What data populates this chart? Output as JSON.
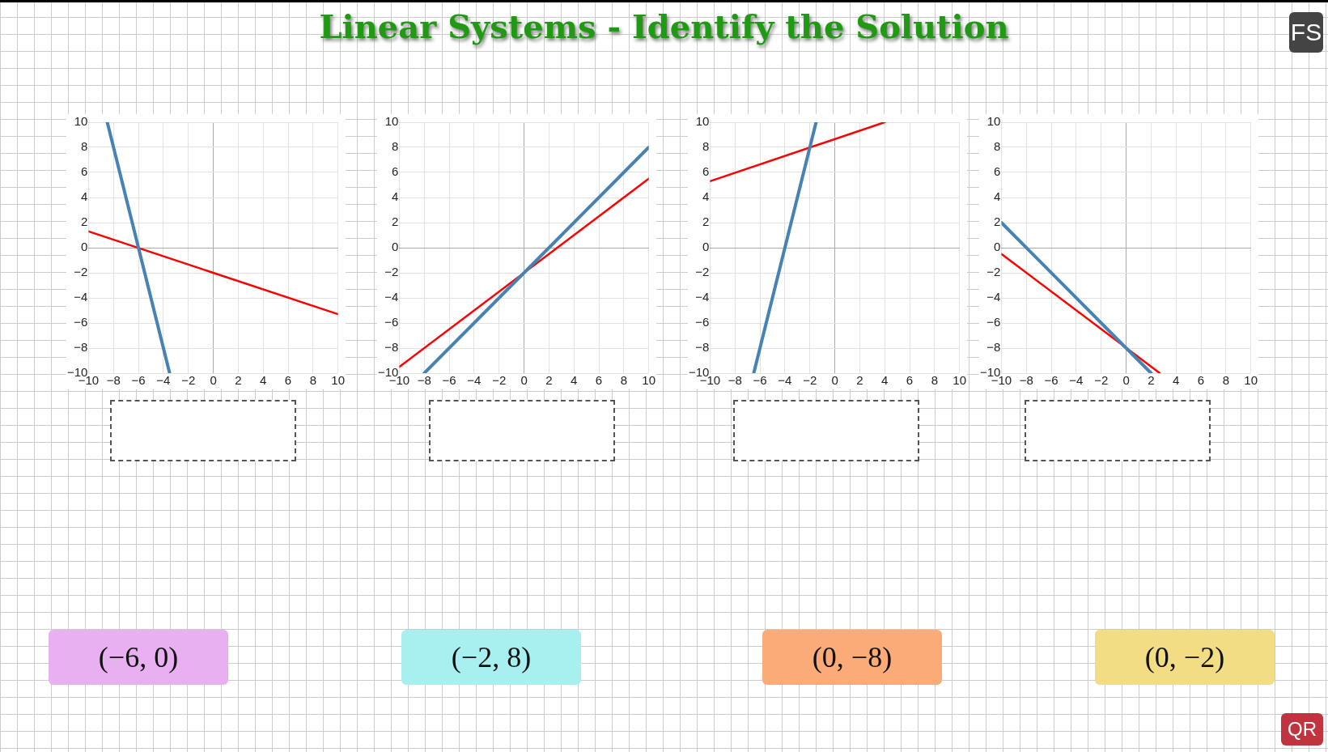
{
  "chart_data": [
    {
      "type": "line",
      "xlim": [
        -10,
        10
      ],
      "ylim": [
        -10,
        10
      ],
      "xticks": [
        {
          "value": -10,
          "label": "−10"
        },
        {
          "value": -8,
          "label": "−8"
        },
        {
          "value": -6,
          "label": "−6"
        },
        {
          "value": -4,
          "label": "−4"
        },
        {
          "value": -2,
          "label": "−2"
        },
        0,
        2,
        4,
        6,
        8,
        10
      ],
      "yticks": [
        {
          "value": -10,
          "label": "−10"
        },
        {
          "value": -8,
          "label": "−8"
        },
        {
          "value": -6,
          "label": "−6"
        },
        {
          "value": -4,
          "label": "−4"
        },
        {
          "value": -2,
          "label": "−2"
        },
        0,
        2,
        4,
        6,
        8,
        10
      ],
      "grid": true,
      "legend": false,
      "marker": "none",
      "series": [
        {
          "color": "#4682b4",
          "x": [
            -8.5,
            -3.5
          ],
          "values": [
            10,
            -10
          ]
        },
        {
          "color": "#ff0000",
          "x": [
            -10,
            10
          ],
          "values": [
            1.3,
            -5.3
          ]
        }
      ]
    },
    {
      "type": "line",
      "xlim": [
        -10,
        10
      ],
      "ylim": [
        -10,
        10
      ],
      "xticks": [
        {
          "value": -10,
          "label": "−10"
        },
        {
          "value": -8,
          "label": "−8"
        },
        {
          "value": -6,
          "label": "−6"
        },
        {
          "value": -4,
          "label": "−4"
        },
        {
          "value": -2,
          "label": "−2"
        },
        0,
        2,
        4,
        6,
        8,
        10
      ],
      "yticks": [
        {
          "value": -10,
          "label": "−10"
        },
        {
          "value": -8,
          "label": "−8"
        },
        {
          "value": -6,
          "label": "−6"
        },
        {
          "value": -4,
          "label": "−4"
        },
        {
          "value": -2,
          "label": "−2"
        },
        0,
        2,
        4,
        6,
        8,
        10
      ],
      "grid": true,
      "legend": false,
      "marker": "none",
      "series": [
        {
          "color": "#4682b4",
          "x": [
            -8,
            10
          ],
          "values": [
            -10,
            8
          ]
        },
        {
          "color": "#ff0000",
          "x": [
            -10,
            10
          ],
          "values": [
            -9.5,
            5.5
          ]
        }
      ]
    },
    {
      "type": "line",
      "xlim": [
        -10,
        10
      ],
      "ylim": [
        -10,
        10
      ],
      "xticks": [
        {
          "value": -10,
          "label": "−10"
        },
        {
          "value": -8,
          "label": "−8"
        },
        {
          "value": -6,
          "label": "−6"
        },
        {
          "value": -4,
          "label": "−4"
        },
        {
          "value": -2,
          "label": "−2"
        },
        0,
        2,
        4,
        6,
        8,
        10
      ],
      "yticks": [
        {
          "value": -10,
          "label": "−10"
        },
        {
          "value": -8,
          "label": "−8"
        },
        {
          "value": -6,
          "label": "−6"
        },
        {
          "value": -4,
          "label": "−4"
        },
        {
          "value": -2,
          "label": "−2"
        },
        0,
        2,
        4,
        6,
        8,
        10
      ],
      "grid": true,
      "legend": false,
      "marker": "none",
      "series": [
        {
          "color": "#4682b4",
          "x": [
            -6.5,
            -1.5
          ],
          "values": [
            -10,
            10
          ]
        },
        {
          "color": "#ff0000",
          "x": [
            -10,
            4
          ],
          "values": [
            5.3,
            10
          ]
        }
      ]
    },
    {
      "type": "line",
      "xlim": [
        -10,
        10
      ],
      "ylim": [
        -10,
        10
      ],
      "xticks": [
        {
          "value": -10,
          "label": "−10"
        },
        {
          "value": -8,
          "label": "−8"
        },
        {
          "value": -6,
          "label": "−6"
        },
        {
          "value": -4,
          "label": "−4"
        },
        {
          "value": -2,
          "label": "−2"
        },
        0,
        2,
        4,
        6,
        8,
        10
      ],
      "yticks": [
        {
          "value": -10,
          "label": "−10"
        },
        {
          "value": -8,
          "label": "−8"
        },
        {
          "value": -6,
          "label": "−6"
        },
        {
          "value": -4,
          "label": "−4"
        },
        {
          "value": -2,
          "label": "−2"
        },
        0,
        2,
        4,
        6,
        8,
        10
      ],
      "grid": true,
      "legend": false,
      "marker": "none",
      "series": [
        {
          "color": "#4682b4",
          "x": [
            -10,
            2
          ],
          "values": [
            2,
            -10
          ]
        },
        {
          "color": "#ff0000",
          "x": [
            -10,
            2.7
          ],
          "values": [
            -0.5,
            -10
          ]
        }
      ]
    },
    {
      "type": "other",
      "title": "Linear Systems - Identify the Solution",
      "annotations": [
        "(−6, 0)",
        "(−2, 8)",
        "(0, −8)",
        "(0, −2)",
        "FS",
        "QR"
      ]
    }
  ]
}
